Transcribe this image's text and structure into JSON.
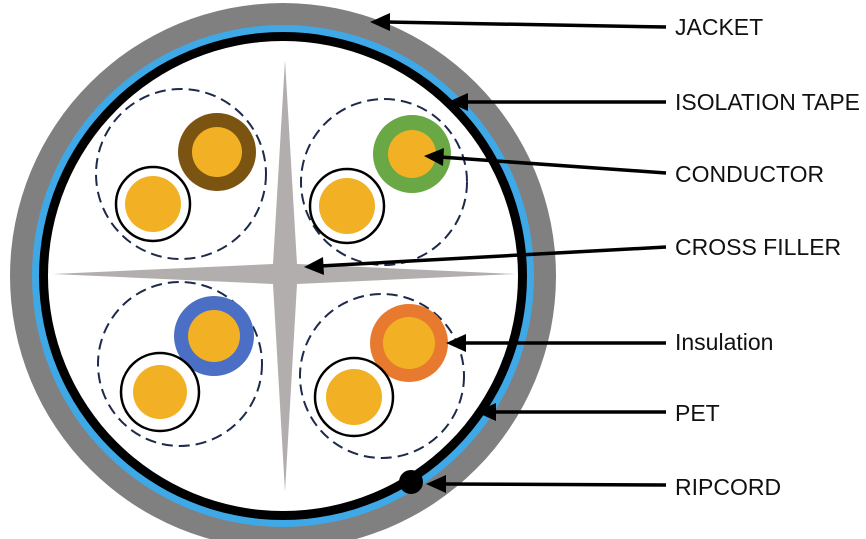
{
  "labels": {
    "jacket": "JACKET",
    "isolation_tape": "ISOLATION TAPE",
    "conductor": "CONDUCTOR",
    "cross_filler": "CROSS FILLER",
    "insulation": "Insulation",
    "pet": "PET",
    "ripcord": "RIPCORD"
  },
  "colors": {
    "jacket": "#808080",
    "isolation_tape": "#3fa9e8",
    "pet": "#000000",
    "cable_core": "#ffffff",
    "cross_filler": "#b3aeae",
    "conductor": "#f2b124",
    "pair_brown": "#7a5410",
    "pair_green": "#6aa845",
    "pair_blue": "#4a6fc4",
    "pair_orange": "#e87a30",
    "pair_white": "#ffffff",
    "pair_boundary": "#1e2a4a"
  }
}
